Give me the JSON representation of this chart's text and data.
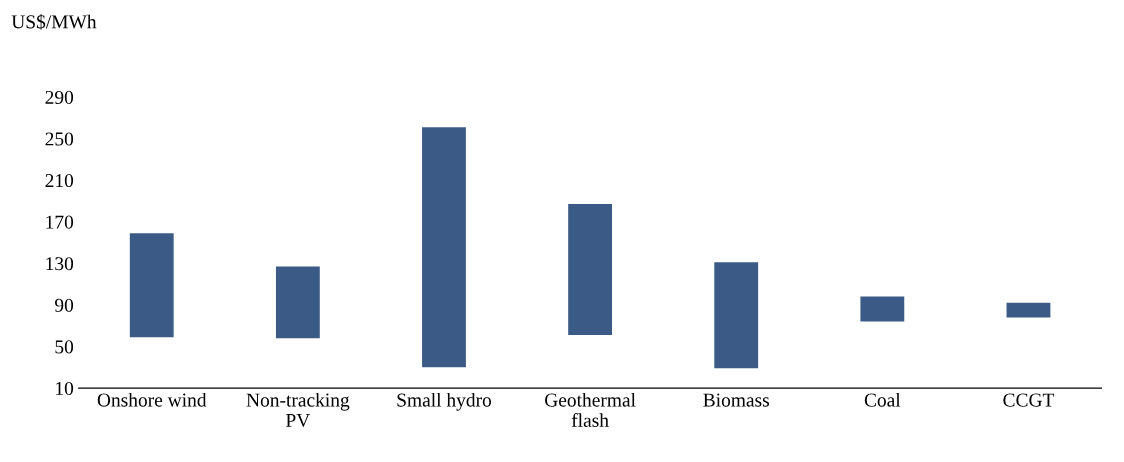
{
  "chart_data": {
    "type": "bar",
    "ylabel": "US$/MWh",
    "categories": [
      "Onshore wind",
      "Non-tracking PV",
      "Small hydro",
      "Geothermal flash",
      "Biomass",
      "Coal",
      "CCGT"
    ],
    "base": [
      59,
      58,
      30,
      61,
      29,
      74,
      78
    ],
    "values": [
      100,
      69,
      231,
      126,
      102,
      24,
      14
    ],
    "color": "#3b5a85",
    "ylim": [
      10,
      290
    ],
    "yticks": [
      10,
      50,
      90,
      130,
      170,
      210,
      250,
      290
    ],
    "grid": false
  }
}
